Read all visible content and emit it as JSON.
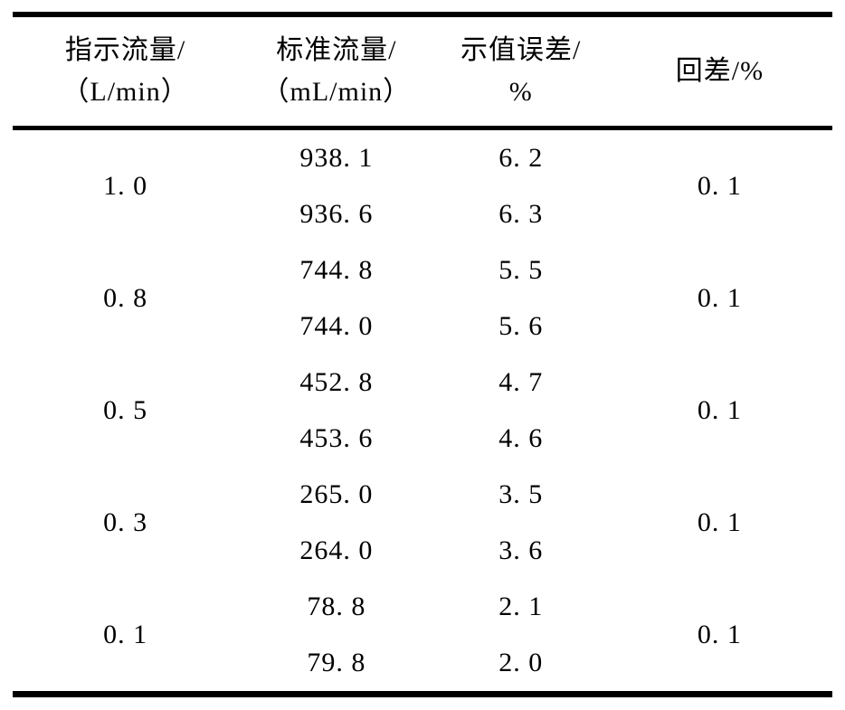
{
  "table": {
    "columns": [
      {
        "line1": "指示流量/",
        "line2": "（L/min）"
      },
      {
        "line1": "标准流量/",
        "line2": "（mL/min）"
      },
      {
        "line1": "示值误差/",
        "line2": "%"
      },
      {
        "line1": "回差/%",
        "line2": ""
      }
    ],
    "groups": [
      {
        "flow": "1. 0",
        "std": [
          "938. 1",
          "936. 6"
        ],
        "err": [
          "6. 2",
          "6. 3"
        ],
        "hys": "0. 1"
      },
      {
        "flow": "0. 8",
        "std": [
          "744. 8",
          "744. 0"
        ],
        "err": [
          "5. 5",
          "5. 6"
        ],
        "hys": "0. 1"
      },
      {
        "flow": "0. 5",
        "std": [
          "452. 8",
          "453. 6"
        ],
        "err": [
          "4. 7",
          "4. 6"
        ],
        "hys": "0. 1"
      },
      {
        "flow": "0. 3",
        "std": [
          "265. 0",
          "264. 0"
        ],
        "err": [
          "3. 5",
          "3. 6"
        ],
        "hys": "0. 1"
      },
      {
        "flow": "0. 1",
        "std": [
          "78. 8",
          "79. 8"
        ],
        "err": [
          "2. 1",
          "2. 0"
        ],
        "hys": "0. 1"
      }
    ]
  },
  "chart_data": {
    "type": "table",
    "columns": [
      "指示流量/(L/min)",
      "标准流量/(mL/min)",
      "示值误差/%",
      "回差/%"
    ],
    "rows": [
      [
        "1.0",
        "938.1",
        "6.2",
        "0.1"
      ],
      [
        "1.0",
        "936.6",
        "6.3",
        "0.1"
      ],
      [
        "0.8",
        "744.8",
        "5.5",
        "0.1"
      ],
      [
        "0.8",
        "744.0",
        "5.6",
        "0.1"
      ],
      [
        "0.5",
        "452.8",
        "4.7",
        "0.1"
      ],
      [
        "0.5",
        "453.6",
        "4.6",
        "0.1"
      ],
      [
        "0.3",
        "265.0",
        "3.5",
        "0.1"
      ],
      [
        "0.3",
        "264.0",
        "3.6",
        "0.1"
      ],
      [
        "0.1",
        "78.8",
        "2.1",
        "0.1"
      ],
      [
        "0.1",
        "79.8",
        "2.0",
        "0.1"
      ]
    ]
  }
}
